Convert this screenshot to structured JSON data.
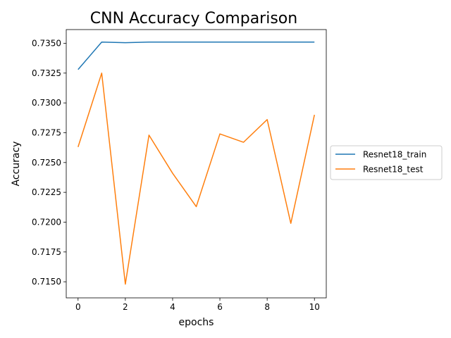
{
  "chart_data": {
    "type": "line",
    "title": "CNN Accuracy Comparison",
    "xlabel": "epochs",
    "ylabel": "Accuracy",
    "xlim": [
      -0.5,
      10.5
    ],
    "ylim": [
      0.71365,
      0.73615
    ],
    "x_ticks": [
      0,
      2,
      4,
      6,
      8,
      10
    ],
    "x_tick_labels": [
      "0",
      "2",
      "4",
      "6",
      "8",
      "10"
    ],
    "y_ticks": [
      0.715,
      0.7175,
      0.72,
      0.7225,
      0.725,
      0.7275,
      0.73,
      0.7325,
      0.735
    ],
    "y_tick_labels": [
      "0.7150",
      "0.7175",
      "0.7200",
      "0.7225",
      "0.7250",
      "0.7275",
      "0.7300",
      "0.7325",
      "0.7350"
    ],
    "grid": false,
    "legend_position": "right",
    "x": [
      0,
      1,
      2,
      3,
      4,
      5,
      6,
      7,
      8,
      9,
      10
    ],
    "series": [
      {
        "name": "Resnet18_train",
        "color": "#1f77b4",
        "values": [
          0.7328,
          0.7351,
          0.73505,
          0.7351,
          0.7351,
          0.7351,
          0.7351,
          0.7351,
          0.7351,
          0.7351,
          0.7351
        ]
      },
      {
        "name": "Resnet18_test",
        "color": "#ff7f0e",
        "values": [
          0.7263,
          0.7325,
          0.7148,
          0.7273,
          0.7241,
          0.7213,
          0.7274,
          0.7267,
          0.7286,
          0.7199,
          0.729
        ]
      }
    ]
  }
}
